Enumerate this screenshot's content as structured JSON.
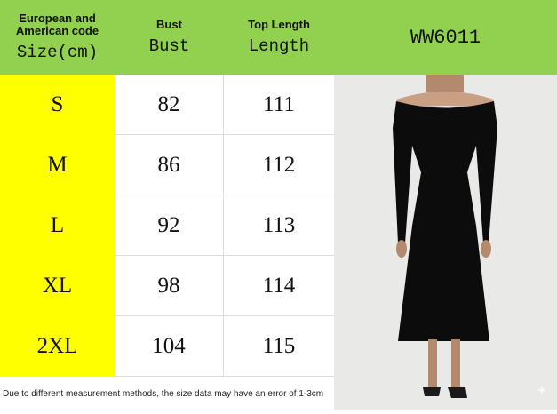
{
  "header": {
    "size_small": "European and American code",
    "size_big": "Size(cm)",
    "bust_small": "Bust",
    "bust_big": "Bust",
    "length_small": "Top Length",
    "length_big": "Length",
    "model": "WW6011"
  },
  "rows": [
    {
      "size": "S",
      "bust": "82",
      "length": "111"
    },
    {
      "size": "M",
      "bust": "86",
      "length": "112"
    },
    {
      "size": "L",
      "bust": "92",
      "length": "113"
    },
    {
      "size": "XL",
      "bust": "98",
      "length": "114"
    },
    {
      "size": "2XL",
      "bust": "104",
      "length": "115"
    }
  ],
  "note": "Due to different measurement methods, the size data may have an error of 1-3cm",
  "colors": {
    "header": "#92d050",
    "size_column": "#ffff00"
  }
}
